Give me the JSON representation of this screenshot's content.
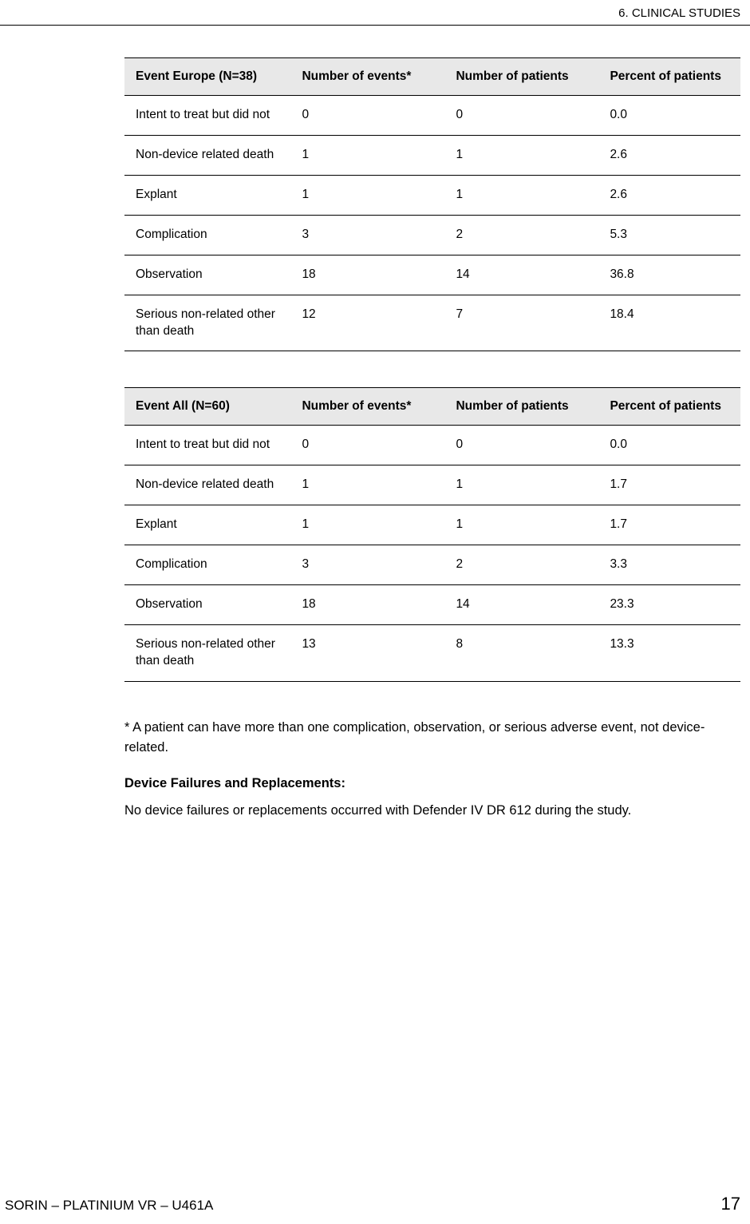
{
  "header": {
    "section_label": "6.  CLINICAL STUDIES"
  },
  "table1": {
    "columns": [
      "Event Europe (N=38)",
      "Number of events*",
      "Number of patients",
      "Percent of patients"
    ],
    "rows": [
      [
        "Intent to treat but did not",
        "0",
        "0",
        "0.0"
      ],
      [
        "Non-device related death",
        "1",
        "1",
        "2.6"
      ],
      [
        "Explant",
        "1",
        "1",
        "2.6"
      ],
      [
        "Complication",
        "3",
        "2",
        "5.3"
      ],
      [
        "Observation",
        "18",
        "14",
        "36.8"
      ],
      [
        "Serious non-related other than death",
        "12",
        "7",
        "18.4"
      ]
    ]
  },
  "table2": {
    "columns": [
      "Event All (N=60)",
      "Number of events*",
      "Number of patients",
      "Percent of patients"
    ],
    "rows": [
      [
        "Intent to treat but did not",
        "0",
        "0",
        "0.0"
      ],
      [
        "Non-device related death",
        "1",
        "1",
        "1.7"
      ],
      [
        "Explant",
        "1",
        "1",
        "1.7"
      ],
      [
        "Complication",
        "3",
        "2",
        "3.3"
      ],
      [
        "Observation",
        "18",
        "14",
        "23.3"
      ],
      [
        "Serious non-related other than death",
        "13",
        "8",
        "13.3"
      ]
    ]
  },
  "footnote_text": "* A patient can have more than one complication, observation, or serious adverse event, not device-related.",
  "section_heading": "Device Failures and Replacements:",
  "body_text": "No device failures or replacements occurred with Defender IV DR 612 during the study.",
  "footer": {
    "left": "SORIN – PLATINIUM VR – U461A",
    "page_number": "17"
  }
}
